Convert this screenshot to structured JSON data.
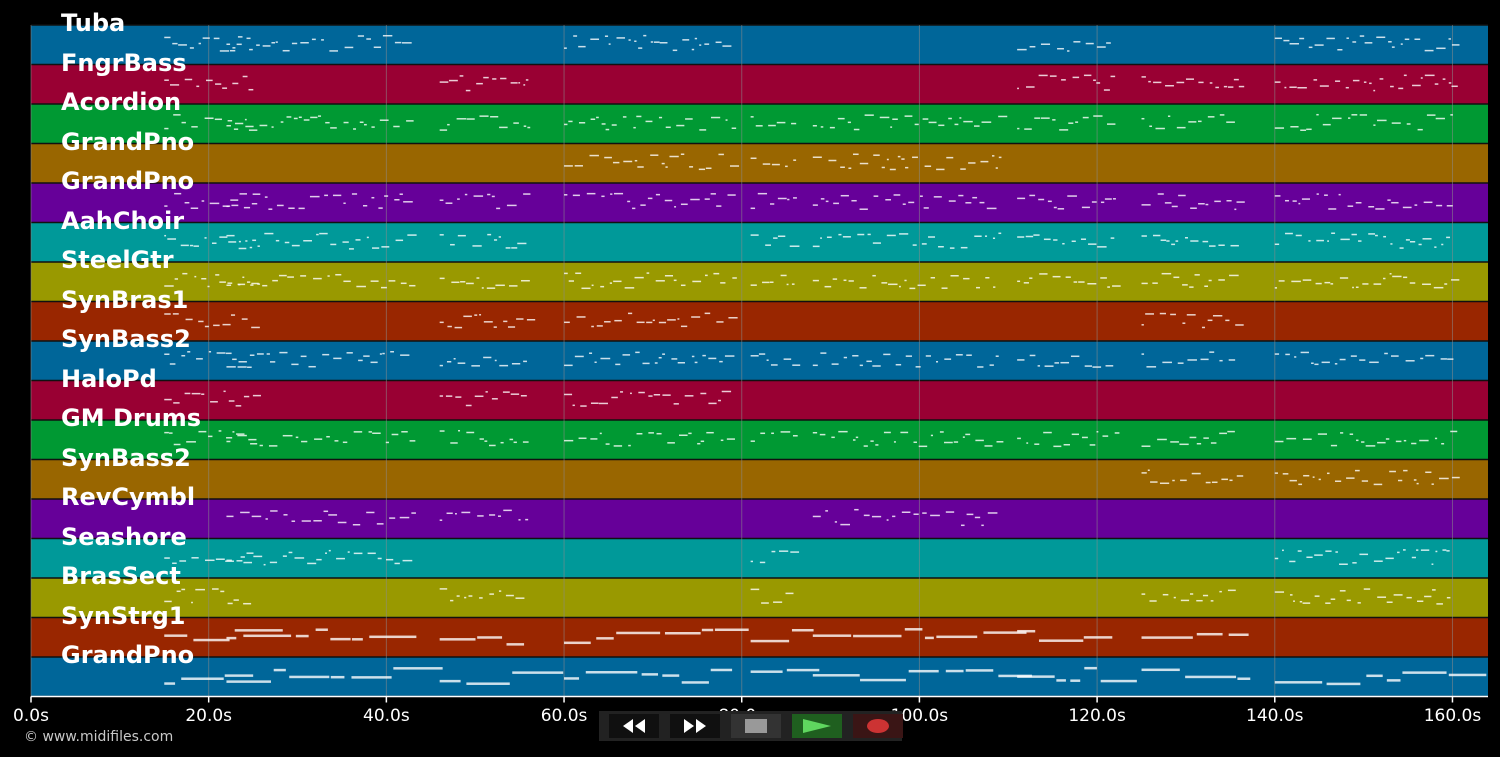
{
  "tracks": [
    {
      "name": "Tuba",
      "color": "#006699"
    },
    {
      "name": "FngrBass",
      "color": "#990033"
    },
    {
      "name": "Acordion",
      "color": "#009933"
    },
    {
      "name": "GrandPno",
      "color": "#996600"
    },
    {
      "name": "GrandPno",
      "color": "#660099"
    },
    {
      "name": "AahChoir",
      "color": "#009999"
    },
    {
      "name": "SteelGtr",
      "color": "#999900"
    },
    {
      "name": "SynBras1",
      "color": "#992600"
    },
    {
      "name": "SynBass2",
      "color": "#006699"
    },
    {
      "name": "HaloPd",
      "color": "#990033"
    },
    {
      "name": "GM Drums",
      "color": "#009933"
    },
    {
      "name": "SynBass2",
      "color": "#996600"
    },
    {
      "name": "RevCymbl",
      "color": "#660099"
    },
    {
      "name": "Seashore",
      "color": "#009999"
    },
    {
      "name": "BrasSect",
      "color": "#999900"
    },
    {
      "name": "SynStrg1",
      "color": "#992600"
    },
    {
      "name": "GrandPno",
      "color": "#006699"
    }
  ],
  "time_axis": {
    "ticks": [
      {
        "value": 0,
        "label": "0.0s"
      },
      {
        "value": 20,
        "label": "20.0s"
      },
      {
        "value": 40,
        "label": "40.0s"
      },
      {
        "value": 60,
        "label": "60.0s"
      },
      {
        "value": 80,
        "label": "80.0s"
      },
      {
        "value": 100,
        "label": "100.0s"
      },
      {
        "value": 120,
        "label": "120.0s"
      },
      {
        "value": 140,
        "label": "140.0s"
      },
      {
        "value": 160,
        "label": "160.0s"
      }
    ],
    "max": 164
  },
  "copyright": "© www.midifiles.com",
  "transport": {
    "rewind_icon": "rewind-icon",
    "fast_forward_icon": "fast-forward-icon",
    "stop_icon": "stop-icon",
    "play_icon": "play-icon",
    "record_icon": "record-icon"
  },
  "colors": {
    "background": "#000000",
    "grid": "#8a8a8a",
    "note": "#ffffff",
    "play_active": "#2a7a2a",
    "record": "#cc3333"
  }
}
